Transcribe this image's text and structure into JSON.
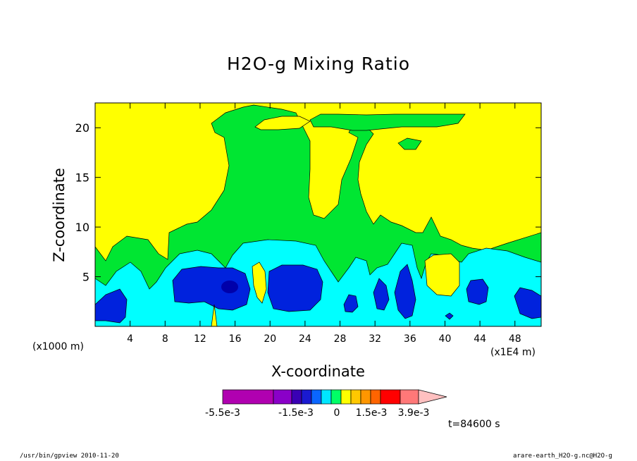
{
  "chart_data": {
    "type": "heatmap",
    "title": "H2O-g Mixing Ratio",
    "xlabel": "X-coordinate",
    "ylabel": "Z-coordinate",
    "x_unit_label": "(x1000 m)",
    "x_scale_label": "(x1E4 m)",
    "x_ticks": [
      "4",
      "8",
      "12",
      "16",
      "20",
      "24",
      "28",
      "32",
      "36",
      "40",
      "44",
      "48"
    ],
    "y_ticks": [
      "5",
      "10",
      "15",
      "20"
    ],
    "xlim": [
      0,
      51
    ],
    "ylim": [
      0,
      22.5
    ],
    "colorbar": {
      "colors": [
        "#b000b0",
        "#8a00c8",
        "#3a00b4",
        "#1a1ad0",
        "#0a66ff",
        "#00e6ff",
        "#00ff66",
        "#ffff00",
        "#ffc800",
        "#ff9600",
        "#ff6400",
        "#ff0000",
        "#ff7878",
        "#ffc0c0"
      ],
      "labels": [
        "-5.5e-3",
        "-1.5e-3",
        "0",
        "1.5e-3",
        "3.9e-3"
      ]
    },
    "fill_colors": {
      "background": "#ffff00",
      "green": "#00e632",
      "cyan": "#00ffff",
      "blue": "#0022dd",
      "dark": "#0000aa"
    },
    "time_label": "t=84600 s"
  },
  "footer": {
    "left": "/usr/bin/gpview  2010-11-20",
    "right": "arare-earth_H2O-g.nc@H2O-g"
  }
}
